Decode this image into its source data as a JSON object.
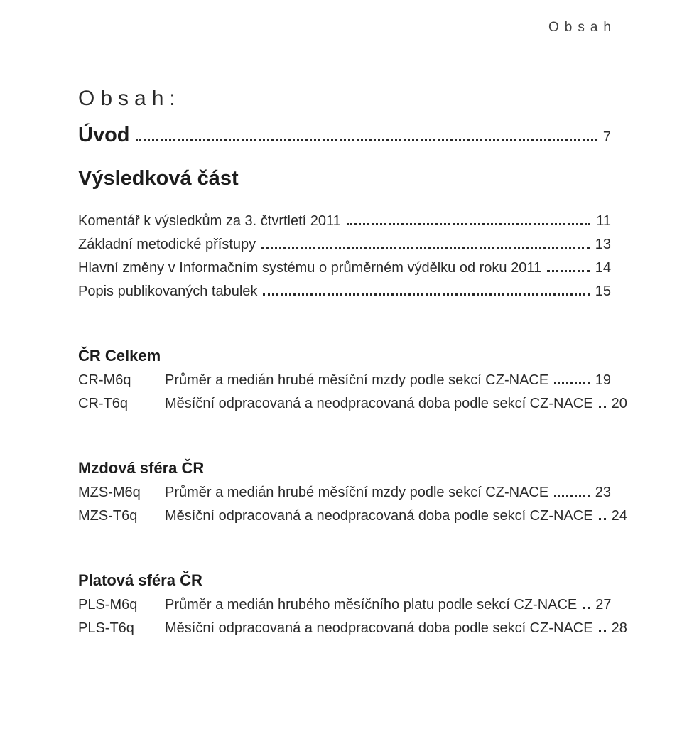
{
  "page_header_right": "Obsah",
  "heading": "Obsah:",
  "entries": {
    "uvod": {
      "label": "Úvod",
      "page": "7"
    },
    "vysledkova": "Výsledková část",
    "komentar": {
      "label": "Komentář k výsledkům za 3. čtvrtletí 2011",
      "page": "11"
    },
    "zakladni": {
      "label": "Základní metodické přístupy",
      "page": "13"
    },
    "hlavni": {
      "label": "Hlavní změny v Informačním systému o průměrném výdělku od roku 2011",
      "page": "14"
    },
    "popis": {
      "label": "Popis publikovaných tabulek",
      "page": "15"
    }
  },
  "sections": [
    {
      "title": "ČR Celkem",
      "rows": [
        {
          "code": "CR-M6q",
          "label": "Průměr a medián hrubé měsíční mzdy podle sekcí CZ-NACE",
          "page": "19"
        },
        {
          "code": "CR-T6q",
          "label": "Měsíční odpracovaná a neodpracovaná doba podle sekcí CZ-NACE",
          "page": "20"
        }
      ]
    },
    {
      "title": "Mzdová sféra ČR",
      "rows": [
        {
          "code": "MZS-M6q",
          "label": "Průměr a medián hrubé měsíční mzdy podle sekcí CZ-NACE",
          "page": "23"
        },
        {
          "code": "MZS-T6q",
          "label": "Měsíční odpracovaná a neodpracovaná doba podle sekcí CZ-NACE",
          "page": "24"
        }
      ]
    },
    {
      "title": "Platová sféra ČR",
      "rows": [
        {
          "code": "PLS-M6q",
          "label": "Průměr a medián hrubého měsíčního platu podle sekcí CZ-NACE",
          "page": "27"
        },
        {
          "code": "PLS-T6q",
          "label": "Měsíční odpracovaná a neodpracovaná doba podle sekcí CZ-NACE",
          "page": "28"
        }
      ]
    }
  ]
}
